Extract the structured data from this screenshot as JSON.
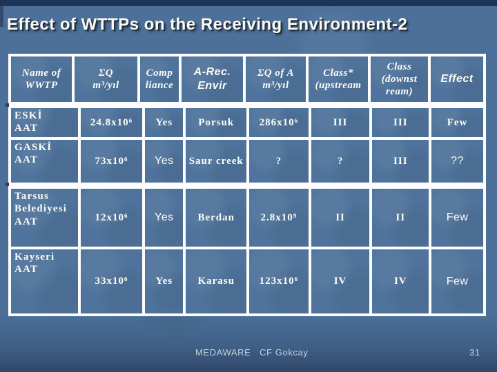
{
  "slide": {
    "title": "Effect of WTTPs on the Receiving Environment-2",
    "footer": {
      "project": "MEDAWARE",
      "author": "CF Gokcay",
      "page_number": "31"
    },
    "colors": {
      "background": "#4c709a",
      "cell_fill": "#4f739c",
      "table_border": "#fdfdfd",
      "title_text": "#fbfaf2",
      "top_band": "#1d3456",
      "footer_text": "#c6ced9"
    }
  },
  "table": {
    "headers": [
      {
        "t": "Name of\nWWTP",
        "sans": false
      },
      {
        "t": "ΣQ\nm³/yıl",
        "sans": false
      },
      {
        "t": "Comp\nliance",
        "sans": false
      },
      {
        "t": "A-Rec.\nEnvir",
        "sans": true
      },
      {
        "t": "ΣQ of A\nm³/yıl",
        "sans": false
      },
      {
        "t": "Class*\n(upstream",
        "sans": false
      },
      {
        "t": "Class\n(downst\nream)",
        "sans": false
      },
      {
        "t": "Effect",
        "sans": true
      }
    ],
    "rows": [
      {
        "cells": [
          {
            "t": "ESKİ\nAAT",
            "sans": false
          },
          {
            "t": "24.8x10⁶",
            "sans": false
          },
          {
            "t": "Yes",
            "sans": false
          },
          {
            "t": "Porsuk",
            "sans": false
          },
          {
            "t": "286x10⁶",
            "sans": false
          },
          {
            "t": "III",
            "sans": false
          },
          {
            "t": "III",
            "sans": false
          },
          {
            "t": "Few",
            "sans": false
          }
        ]
      },
      {
        "cells": [
          {
            "t": "GASKİ\nAAT",
            "sans": false
          },
          {
            "t": "73x10⁶",
            "sans": false
          },
          {
            "t": "Yes",
            "sans": true
          },
          {
            "t": "Saur creek",
            "sans": false
          },
          {
            "t": "?",
            "sans": false
          },
          {
            "t": "?",
            "sans": false
          },
          {
            "t": "III",
            "sans": false
          },
          {
            "t": "??",
            "sans": true
          }
        ]
      },
      {
        "cells": [
          {
            "t": "Tarsus\nBelediyesi\nAAT",
            "sans": false
          },
          {
            "t": "12x10⁶",
            "sans": false
          },
          {
            "t": "Yes",
            "sans": true
          },
          {
            "t": "Berdan",
            "sans": false
          },
          {
            "t": "2.8x10⁹",
            "sans": false
          },
          {
            "t": "II",
            "sans": false
          },
          {
            "t": "II",
            "sans": false
          },
          {
            "t": "Few",
            "sans": true
          }
        ]
      },
      {
        "cells": [
          {
            "t": "Kayseri\nAAT",
            "sans": false
          },
          {
            "t": "33x10⁶",
            "sans": false
          },
          {
            "t": "Yes",
            "sans": false
          },
          {
            "t": "Karasu",
            "sans": false
          },
          {
            "t": "123x10⁶",
            "sans": false
          },
          {
            "t": "IV",
            "sans": false
          },
          {
            "t": "IV",
            "sans": false
          },
          {
            "t": "Few",
            "sans": true
          }
        ]
      }
    ]
  }
}
